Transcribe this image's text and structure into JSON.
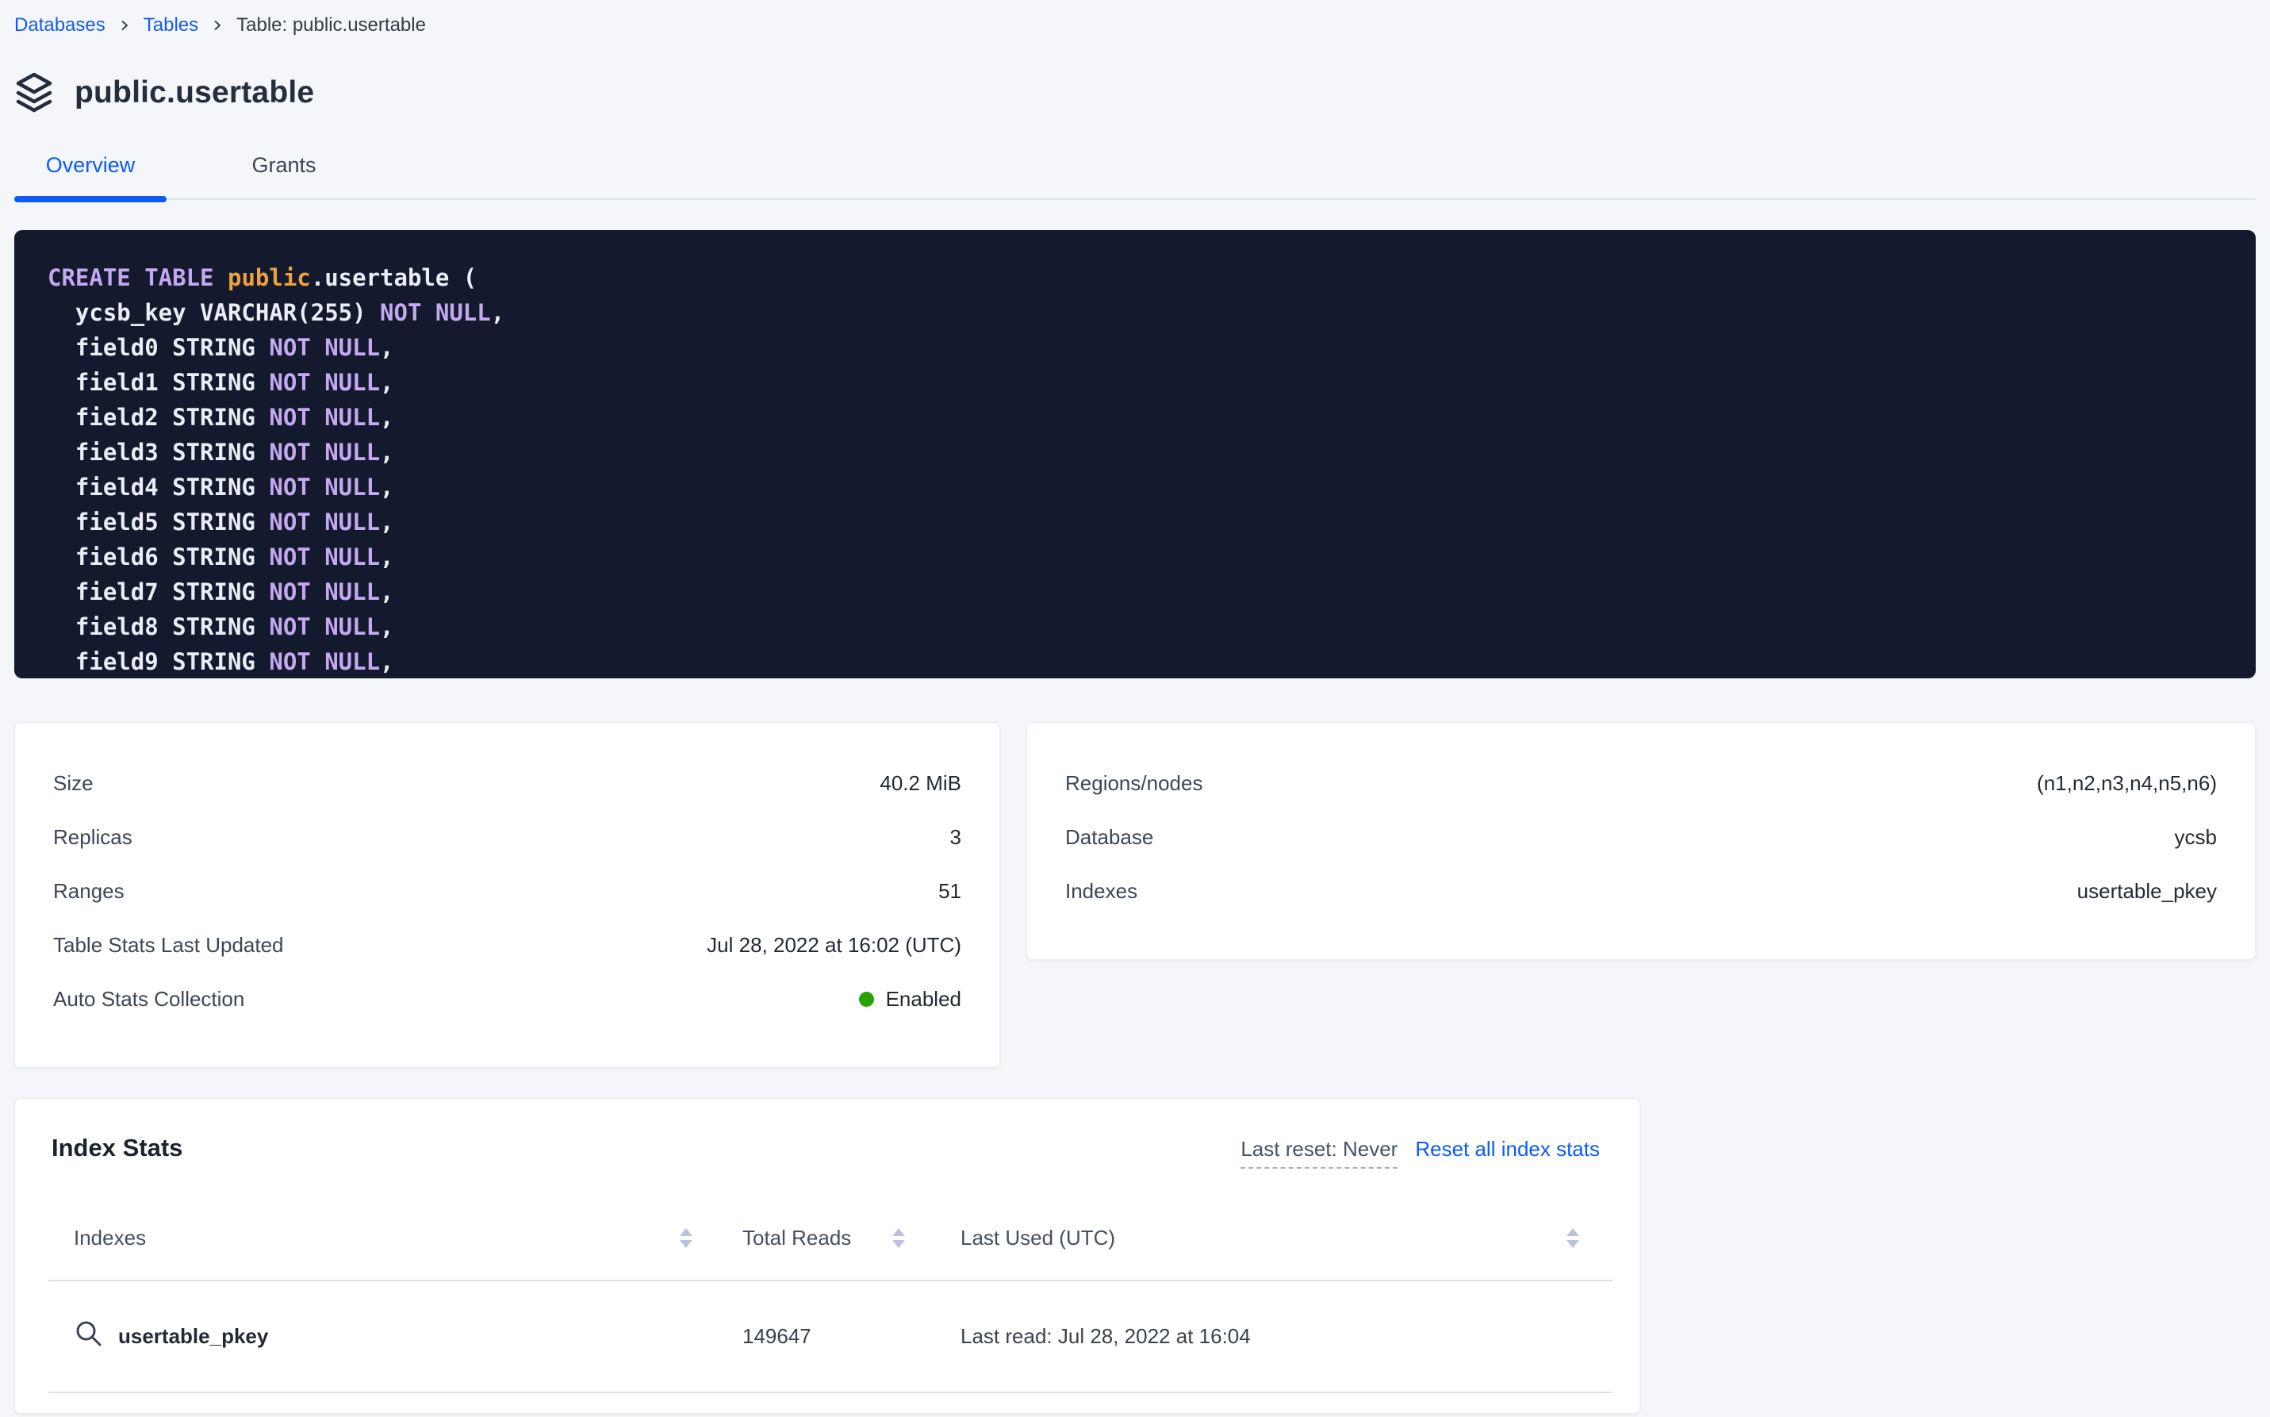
{
  "colors": {
    "accent_blue": "#0b5cf5",
    "status_green": "#2aa206",
    "code_background": "#141a2d",
    "code_keyword": "#c4a9f1",
    "code_accent": "#efa13c",
    "code_plain": "#e9edf4"
  },
  "breadcrumb": {
    "items": [
      {
        "label": "Databases"
      },
      {
        "label": "Tables"
      },
      {
        "label": "Table: public.usertable"
      }
    ]
  },
  "header": {
    "title": "public.usertable"
  },
  "tabs": [
    {
      "label": "Overview",
      "active": true
    },
    {
      "label": "Grants",
      "active": false
    }
  ],
  "sql": {
    "lines": [
      [
        [
          "CREATE TABLE ",
          "kw"
        ],
        [
          "public",
          "accent"
        ],
        [
          ".usertable (",
          "plain"
        ]
      ],
      [
        [
          "  ycsb_key VARCHAR(255) ",
          "plain"
        ],
        [
          "NOT NULL",
          "kw"
        ],
        [
          ",",
          "plain"
        ]
      ],
      [
        [
          "  field0 STRING ",
          "plain"
        ],
        [
          "NOT NULL",
          "kw"
        ],
        [
          ",",
          "plain"
        ]
      ],
      [
        [
          "  field1 STRING ",
          "plain"
        ],
        [
          "NOT NULL",
          "kw"
        ],
        [
          ",",
          "plain"
        ]
      ],
      [
        [
          "  field2 STRING ",
          "plain"
        ],
        [
          "NOT NULL",
          "kw"
        ],
        [
          ",",
          "plain"
        ]
      ],
      [
        [
          "  field3 STRING ",
          "plain"
        ],
        [
          "NOT NULL",
          "kw"
        ],
        [
          ",",
          "plain"
        ]
      ],
      [
        [
          "  field4 STRING ",
          "plain"
        ],
        [
          "NOT NULL",
          "kw"
        ],
        [
          ",",
          "plain"
        ]
      ],
      [
        [
          "  field5 STRING ",
          "plain"
        ],
        [
          "NOT NULL",
          "kw"
        ],
        [
          ",",
          "plain"
        ]
      ],
      [
        [
          "  field6 STRING ",
          "plain"
        ],
        [
          "NOT NULL",
          "kw"
        ],
        [
          ",",
          "plain"
        ]
      ],
      [
        [
          "  field7 STRING ",
          "plain"
        ],
        [
          "NOT NULL",
          "kw"
        ],
        [
          ",",
          "plain"
        ]
      ],
      [
        [
          "  field8 STRING ",
          "plain"
        ],
        [
          "NOT NULL",
          "kw"
        ],
        [
          ",",
          "plain"
        ]
      ],
      [
        [
          "  field9 STRING ",
          "plain"
        ],
        [
          "NOT NULL",
          "kw"
        ],
        [
          ",",
          "plain"
        ]
      ]
    ]
  },
  "details_left": {
    "rows": [
      {
        "label": "Size",
        "value": "40.2 MiB"
      },
      {
        "label": "Replicas",
        "value": "3"
      },
      {
        "label": "Ranges",
        "value": "51"
      },
      {
        "label": "Table Stats Last Updated",
        "value": "Jul 28, 2022 at 16:02 (UTC)"
      },
      {
        "label": "Auto Stats Collection",
        "value": "Enabled",
        "status_dot": true
      }
    ]
  },
  "details_right": {
    "rows": [
      {
        "label": "Regions/nodes",
        "value": "(n1,n2,n3,n4,n5,n6)"
      },
      {
        "label": "Database",
        "value": "ycsb"
      },
      {
        "label": "Indexes",
        "value": "usertable_pkey"
      }
    ]
  },
  "index_stats": {
    "title": "Index Stats",
    "last_reset_label": "Last reset: Never",
    "reset_link_label": "Reset all index stats",
    "columns": [
      "Indexes",
      "Total Reads",
      "Last Used (UTC)"
    ],
    "rows": [
      {
        "index": "usertable_pkey",
        "total_reads": "149647",
        "last_used": "Last read: Jul 28, 2022 at 16:04"
      }
    ]
  }
}
